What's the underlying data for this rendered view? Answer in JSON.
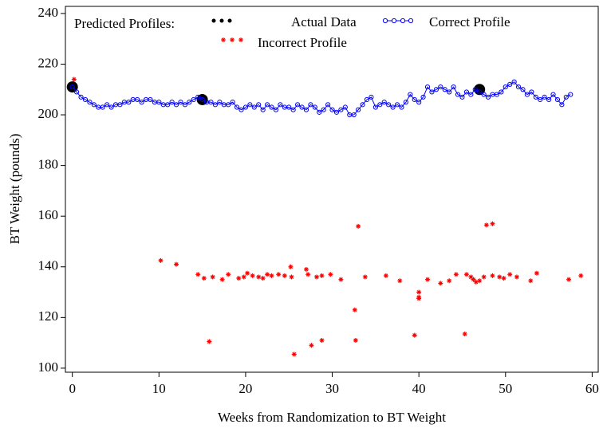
{
  "chart_data": {
    "type": "scatter",
    "legend_title": "Predicted Profiles:",
    "xlabel": "Weeks from Randomization to BT Weight",
    "ylabel": "BT Weight (pounds)",
    "xlim": [
      -0.8,
      60.7
    ],
    "ylim": [
      98.4,
      242.8
    ],
    "xticks": [
      0,
      10,
      20,
      30,
      40,
      50,
      60
    ],
    "yticks": [
      100,
      120,
      140,
      160,
      180,
      200,
      220,
      240
    ],
    "series": [
      {
        "name": "Actual Data",
        "color": "#000000",
        "marker": "dot",
        "x": [
          0,
          15,
          47
        ],
        "values": [
          211,
          206,
          210
        ]
      },
      {
        "name": "Correct Profile",
        "color": "#0000ff",
        "marker": "circle-line",
        "x": [
          0,
          0.5,
          1,
          1.5,
          2,
          2.5,
          3,
          3.5,
          4,
          4.5,
          5,
          5.5,
          6,
          6.5,
          7,
          7.5,
          8,
          8.5,
          9,
          9.5,
          10,
          10.5,
          11,
          11.5,
          12,
          12.5,
          13,
          13.5,
          14,
          14.5,
          15,
          15.5,
          16,
          16.5,
          17,
          17.5,
          18,
          18.5,
          19,
          19.5,
          20,
          20.5,
          21,
          21.5,
          22,
          22.5,
          23,
          23.5,
          24,
          24.5,
          25,
          25.5,
          26,
          26.5,
          27,
          27.5,
          28,
          28.5,
          29,
          29.5,
          30,
          30.5,
          31,
          31.5,
          32,
          32.5,
          33,
          33.5,
          34,
          34.5,
          35,
          35.5,
          36,
          36.5,
          37,
          37.5,
          38,
          38.5,
          39,
          39.5,
          40,
          40.5,
          41,
          41.5,
          42,
          42.5,
          43,
          43.5,
          44,
          44.5,
          45,
          45.5,
          46,
          46.5,
          47,
          47.5,
          48,
          48.5,
          49,
          49.5,
          50,
          50.5,
          51,
          51.5,
          52,
          52.5,
          53,
          53.5,
          54,
          54.5,
          55,
          55.5,
          56,
          56.5,
          57,
          57.5
        ],
        "values": [
          211,
          209,
          207,
          206,
          205,
          204,
          203,
          203,
          204,
          203,
          204,
          204,
          205,
          205,
          206,
          206,
          205,
          206,
          206,
          205,
          205,
          204,
          204,
          205,
          204,
          205,
          204,
          205,
          206,
          207,
          206,
          205,
          205,
          204,
          205,
          204,
          204,
          205,
          203,
          202,
          203,
          204,
          203,
          204,
          202,
          204,
          203,
          202,
          204,
          203,
          203,
          202,
          204,
          203,
          202,
          204,
          203,
          201,
          202,
          204,
          202,
          201,
          202,
          203,
          200,
          200,
          202,
          204,
          206,
          207,
          203,
          204,
          205,
          204,
          203,
          204,
          203,
          205,
          208,
          206,
          205,
          207,
          211,
          209,
          210,
          211,
          210,
          209,
          211,
          208,
          207,
          209,
          208,
          210,
          209,
          208,
          207,
          208,
          208,
          209,
          211,
          212,
          213,
          211,
          210,
          208,
          209,
          207,
          206,
          207,
          206,
          208,
          206,
          204,
          207,
          208
        ]
      },
      {
        "name": "Incorrect Profile",
        "color": "#ff0000",
        "marker": "asterisk",
        "x": [
          0.2,
          10.2,
          12,
          14.5,
          15.2,
          15.8,
          16.2,
          17.3,
          18,
          19.2,
          19.8,
          20.2,
          20.8,
          21.5,
          22,
          22.5,
          23,
          23.8,
          24.5,
          25.2,
          25.3,
          25.6,
          27,
          27.2,
          27.6,
          28.2,
          28.8,
          28.8,
          29.8,
          31,
          32.6,
          32.7,
          33,
          33.8,
          36.2,
          37.8,
          39.5,
          40,
          40,
          40,
          41,
          42.5,
          43.5,
          44.3,
          45.3,
          45.5,
          46,
          46.3,
          46.6,
          47,
          47.5,
          47.8,
          48.5,
          48.5,
          49.3,
          49.8,
          50.5,
          51.3,
          52.9,
          53.6,
          57.3,
          58.7
        ],
        "values": [
          214,
          142.5,
          141,
          137,
          135.5,
          110.5,
          136,
          135,
          137,
          135.5,
          136,
          137.5,
          136.5,
          136,
          135.5,
          137,
          136.5,
          137,
          136.5,
          140,
          136,
          105.5,
          139,
          137,
          109,
          136,
          111,
          136.5,
          137,
          135,
          123,
          111,
          156,
          136,
          136.5,
          134.5,
          113,
          130,
          128,
          127.5,
          135,
          133.5,
          134.5,
          137,
          113.5,
          137,
          136,
          135,
          134,
          134.5,
          136,
          156.5,
          157,
          136.5,
          136,
          135.5,
          137,
          136,
          134.5,
          137.5,
          135,
          136.5
        ]
      }
    ]
  }
}
